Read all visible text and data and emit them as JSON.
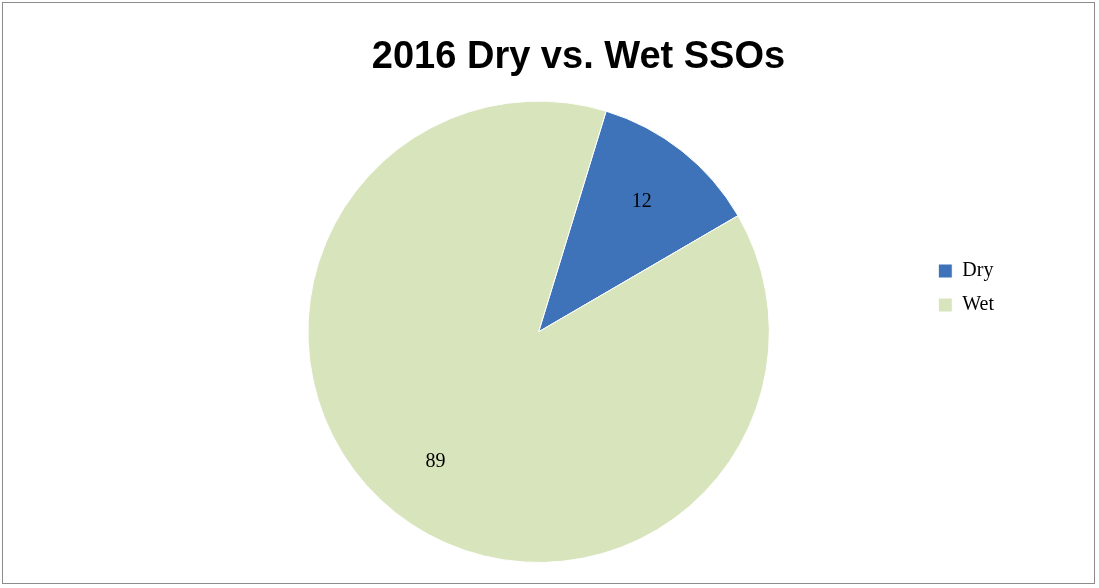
{
  "chart_data": {
    "type": "pie",
    "title": "2016 Dry vs. Wet SSOs",
    "categories": [
      "Dry",
      "Wet"
    ],
    "values": [
      12,
      89
    ],
    "colors": [
      "#3e73b9",
      "#d8e4bc"
    ],
    "data_labels": true,
    "legend": "right"
  }
}
